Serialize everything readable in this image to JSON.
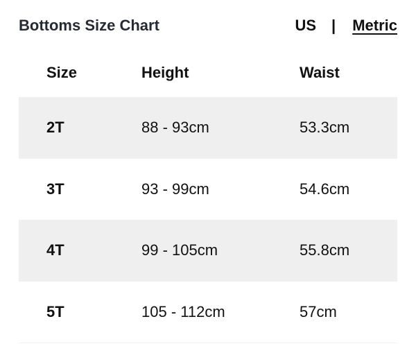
{
  "title": "Bottoms Size Chart",
  "units": {
    "us": "US",
    "separator": "|",
    "metric": "Metric",
    "selected": "Metric"
  },
  "table": {
    "headers": [
      "Size",
      "Height",
      "Waist"
    ],
    "rows": [
      [
        "2T",
        "88 - 93cm",
        "53.3cm"
      ],
      [
        "3T",
        "93 - 99cm",
        "54.6cm"
      ],
      [
        "4T",
        "99 - 105cm",
        "55.8cm"
      ],
      [
        "5T",
        "105 - 112cm",
        "57cm"
      ]
    ]
  },
  "colors": {
    "row_shade": "#efefef",
    "title": "#262b33"
  }
}
